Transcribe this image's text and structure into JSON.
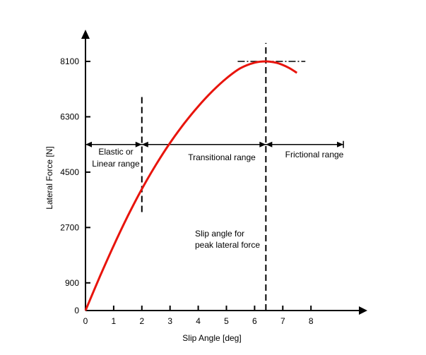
{
  "chart_data": {
    "type": "line",
    "xlabel": "Slip Angle [deg]",
    "ylabel": "Lateral Force [N]",
    "x_ticks": [
      "0",
      "1",
      "2",
      "3",
      "4",
      "5",
      "6",
      "7",
      "8"
    ],
    "y_ticks": [
      "0",
      "900",
      "2700",
      "4500",
      "6300",
      "8100"
    ],
    "xlim": [
      0,
      9.8
    ],
    "ylim": [
      0,
      8950
    ],
    "grid": false,
    "series": [
      {
        "color": "#e8140c",
        "x": [
          0,
          0.5,
          1,
          1.5,
          2,
          2.5,
          3,
          3.5,
          4,
          4.5,
          5,
          5.5,
          6,
          6.4,
          6.8,
          7.2,
          7.5
        ],
        "y": [
          0,
          1080,
          2110,
          3070,
          3950,
          4740,
          5450,
          6080,
          6640,
          7130,
          7550,
          7880,
          8060,
          8100,
          8050,
          7900,
          7730
        ]
      }
    ],
    "vertical_markers": [
      {
        "x": 2.0,
        "y_from": 3200,
        "y_to": 7000
      },
      {
        "x": 6.4,
        "y_from": 0,
        "y_to": 8700
      }
    ],
    "peak_marker": {
      "x_from": 5.4,
      "x_to": 7.8,
      "y": 8100
    },
    "range_arrow": {
      "y": 5400,
      "x_points": [
        0,
        2.0,
        6.4,
        9.15
      ]
    },
    "labels": {
      "elastic": [
        "Elastic or",
        "Linear range"
      ],
      "transitional": "Transitional range",
      "frictional": "Frictional range",
      "peak_note": [
        "Slip angle for",
        "peak lateral force"
      ]
    }
  }
}
